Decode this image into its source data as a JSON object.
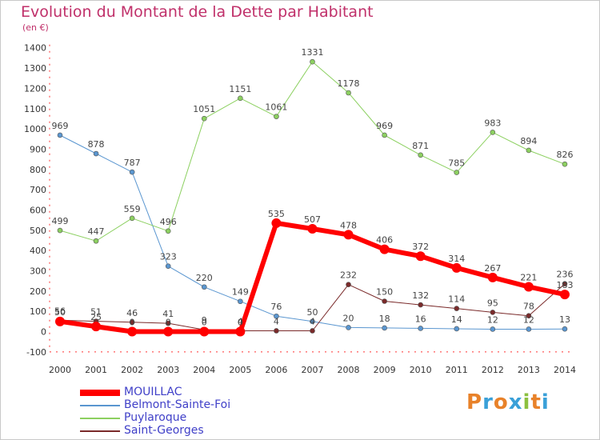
{
  "title": "Evolution du Montant de la Dette par Habitant",
  "subtitle": "(en €)",
  "logo": {
    "letters": [
      "P",
      "r",
      "o",
      "x",
      "i",
      "t",
      "i"
    ],
    "colors": [
      "#e8822a",
      "#3aa0d8",
      "#e8822a",
      "#3aa0d8",
      "#8cc040",
      "#e8822a",
      "#3aa0d8"
    ]
  },
  "chart_data": {
    "type": "line",
    "x": [
      2000,
      2001,
      2002,
      2003,
      2004,
      2005,
      2006,
      2007,
      2008,
      2009,
      2010,
      2011,
      2012,
      2013,
      2014
    ],
    "ylim": [
      -100,
      1400
    ],
    "yticks": [
      -100,
      0,
      100,
      200,
      300,
      400,
      500,
      600,
      700,
      800,
      900,
      1000,
      1100,
      1200,
      1300,
      1400
    ],
    "grid": false,
    "legend_position": "bottom-left",
    "series": [
      {
        "name": "MOUILLAC",
        "color": "#ff0000",
        "width": 6,
        "values": [
          50,
          25,
          0,
          0,
          0,
          0,
          535,
          507,
          478,
          406,
          372,
          314,
          267,
          221,
          183
        ],
        "labels": [
          "50",
          "25",
          "0",
          "0",
          "0",
          "0",
          "535",
          "507",
          "478",
          "406",
          "372",
          "314",
          "267",
          "221",
          "183"
        ]
      },
      {
        "name": "Belmont-Sainte-Foi",
        "color": "#5a96d0",
        "width": 1,
        "values": [
          969,
          878,
          787,
          323,
          220,
          149,
          76,
          50,
          20,
          18,
          16,
          14,
          12,
          12,
          13
        ],
        "labels": [
          "969",
          "878",
          "787",
          "323",
          "220",
          "149",
          "76",
          "50",
          "20",
          "18",
          "16",
          "14",
          "12",
          "12",
          "13"
        ]
      },
      {
        "name": "Puylaroque",
        "color": "#8cd060",
        "width": 1,
        "values": [
          499,
          447,
          559,
          496,
          1051,
          1151,
          1061,
          1331,
          1178,
          969,
          871,
          785,
          983,
          894,
          826
        ],
        "labels": [
          "499",
          "447",
          "559",
          "496",
          "1051",
          "1151",
          "1061",
          "1331",
          "1178",
          "969",
          "871",
          "785",
          "983",
          "894",
          "826"
        ]
      },
      {
        "name": "Saint-Georges",
        "color": "#7a2a2a",
        "width": 1,
        "values": [
          56,
          51,
          46,
          41,
          9,
          4,
          4,
          4,
          232,
          150,
          132,
          114,
          95,
          78,
          236
        ],
        "labels": [
          "56",
          "51",
          "46",
          "41",
          "9",
          "4",
          "4",
          "4",
          "232",
          "150",
          "132",
          "114",
          "95",
          "78",
          "236"
        ]
      }
    ]
  }
}
